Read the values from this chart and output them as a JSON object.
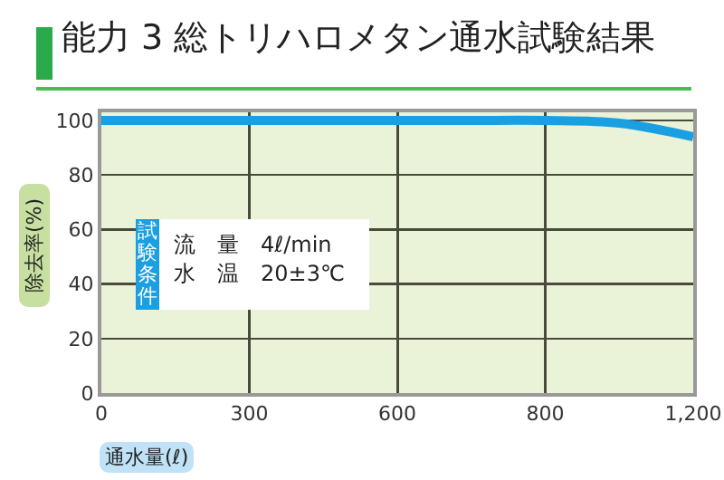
{
  "chart_data": {
    "type": "line",
    "title": "能力 3 総トリハロメタン通水試験結果",
    "xlabel": "通水量(ℓ)",
    "ylabel": "除去率(%)",
    "categories": [
      "0",
      null,
      "300",
      null,
      "600",
      null,
      "800",
      null,
      "1,200"
    ],
    "series": [
      {
        "color": "#1a9fe3",
        "values": [
          100,
          100,
          100,
          100,
          100,
          100,
          100,
          99,
          94
        ]
      }
    ],
    "ylim": [
      0,
      103
    ],
    "yticks": [
      0,
      20,
      40,
      60,
      80,
      100
    ],
    "grid": true,
    "marker": "none",
    "line_style": "solid",
    "annotations": [
      "試験条件",
      "流　量　4ℓ/min",
      "水　温　20±3℃"
    ]
  }
}
